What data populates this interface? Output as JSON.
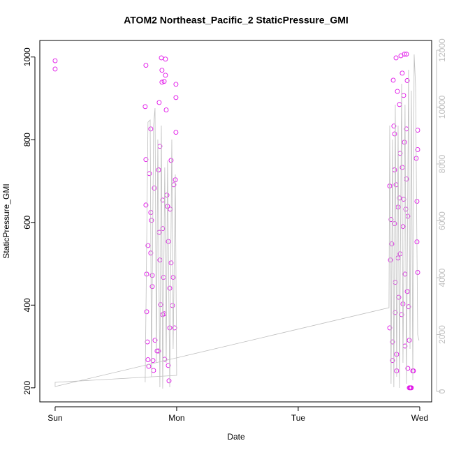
{
  "chart_data": {
    "type": "scatter",
    "title": "ATOM2 Northeast_Pacific_2 StaticPressure_GMI",
    "x_label": "Date",
    "y_label": "StaticPressure_GMI",
    "xlim": [
      -0.126,
      3.098
    ],
    "ylim": [
      166,
      1040
    ],
    "y2lim": [
      -368,
      12344
    ],
    "xticks": [
      {
        "value": 0,
        "label": "Sun"
      },
      {
        "value": 1,
        "label": "Mon"
      },
      {
        "value": 2,
        "label": "Tue"
      },
      {
        "value": 3,
        "label": "Wed"
      }
    ],
    "yticks": [
      200,
      400,
      600,
      800,
      1000
    ],
    "y2ticks": [
      0,
      2000,
      4000,
      6000,
      8000,
      10000,
      12000
    ],
    "y2_color": "#bebebe",
    "series": [
      {
        "type": "scatter",
        "color": "#e010e8",
        "x": [
          0,
          0,
          0.747,
          0.741,
          0.747,
          0.747,
          0.764,
          0.753,
          0.753,
          0.759,
          0.764,
          0.77,
          0.787,
          0.776,
          0.787,
          0.793,
          0.787,
          0.799,
          0.799,
          0.805,
          0.81,
          0.816,
          0.822,
          0.839,
          0.851,
          0.856,
          0.851,
          0.856,
          0.862,
          0.868,
          0.862,
          0.874,
          0.879,
          0.879,
          0.885,
          0.885,
          0.891,
          0.897,
          0.902,
          0.908,
          0.908,
          0.914,
          0.92,
          0.925,
          0.931,
          0.931,
          0.937,
          0.943,
          0.943,
          0.948,
          0.954,
          0.954,
          0.966,
          0.971,
          0.977,
          0.983,
          0.989,
          0.994,
          0.994,
          0.994,
          0.897,
          0.885,
          2.753,
          2.759,
          2.753,
          2.764,
          2.77,
          2.776,
          2.776,
          2.782,
          2.787,
          2.793,
          2.793,
          2.793,
          2.799,
          2.799,
          2.805,
          2.805,
          2.81,
          2.81,
          2.816,
          2.822,
          2.822,
          2.828,
          2.833,
          2.833,
          2.839,
          2.839,
          2.845,
          2.851,
          2.856,
          2.856,
          2.862,
          2.862,
          2.868,
          2.868,
          2.874,
          2.874,
          2.879,
          2.879,
          2.885,
          2.891,
          2.891,
          2.891,
          2.897,
          2.897,
          2.902,
          2.902,
          2.908,
          2.914,
          2.914,
          2.92,
          2.925,
          2.931,
          2.943,
          2.948,
          2.971,
          2.977,
          2.977,
          2.983,
          2.983,
          2.983
        ],
        "values": [
          991,
          971,
          980,
          880,
          752,
          642,
          544,
          475,
          384,
          311,
          268,
          252,
          826,
          718,
          624,
          605,
          526,
          472,
          445,
          266,
          242,
          683,
          315,
          289,
          289,
          890,
          727,
          576,
          509,
          401,
          784,
          998,
          968,
          939,
          654,
          585,
          467,
          379,
          269,
          995,
          956,
          872,
          666,
          639,
          554,
          254,
          217,
          441,
          345,
          632,
          750,
          502,
          399,
          467,
          691,
          345,
          703,
          934,
          902,
          818,
          941,
          377,
          345,
          509,
          688,
          607,
          548,
          311,
          266,
          944,
          833,
          814,
          727,
          597,
          455,
          382,
          998,
          691,
          281,
          241,
          917,
          637,
          514,
          419,
          885,
          659,
          767,
          524,
          1003,
          377,
          961,
          733,
          590,
          403,
          907,
          656,
          1007,
          794,
          475,
          301,
          632,
          1007,
          826,
          705,
          943,
          433,
          615,
          247,
          396,
          315,
          200,
          200,
          200,
          200,
          241,
          241,
          755,
          553,
          651,
          823,
          479,
          776
        ]
      },
      {
        "type": "line",
        "axis": "y2",
        "color": "#bebebe",
        "x": [
          0.741,
          0.764,
          0.782,
          0.793,
          0.81,
          0.822,
          0.833,
          0.845,
          0.862,
          0.874,
          0.885,
          0.902,
          0.914,
          0.925,
          0.943,
          0.96,
          0.971,
          0.989,
          1.0,
          0,
          0,
          2.747,
          2.753,
          2.764,
          2.776,
          2.787,
          2.799,
          2.81,
          2.822,
          2.833,
          2.851,
          2.862,
          2.879,
          2.891,
          2.908,
          2.92,
          2.931,
          2.943,
          2.954,
          2.966,
          2.983,
          2.994
        ],
        "values": [
          319,
          9472,
          9546,
          515,
          9350,
          9963,
          1006,
          8859,
          147,
          9350,
          98,
          7877,
          1006,
          8123,
          147,
          8859,
          1497,
          7632,
          564,
          319,
          172,
          2945,
          9350,
          270,
          8859,
          147,
          10086,
          515,
          9350,
          123,
          10822,
          1006,
          10086,
          270,
          11313,
          1497,
          10577,
          393,
          11853,
          10724,
          1988,
          1791
        ]
      }
    ]
  }
}
